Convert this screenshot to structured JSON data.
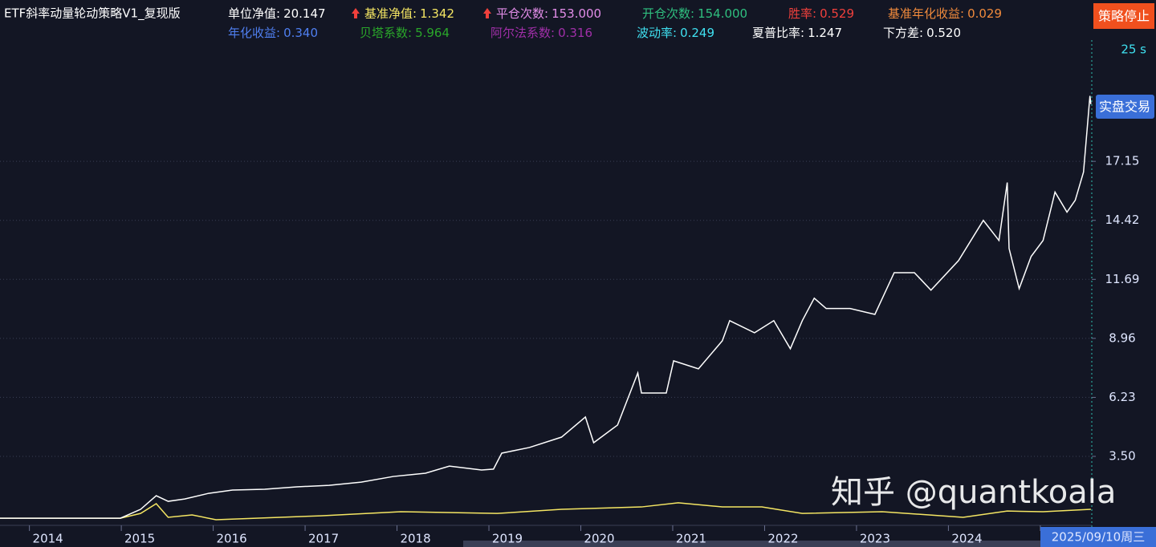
{
  "header": {
    "title": "ETF斜率动量轮动策略V1_复现版",
    "stats": [
      {
        "label": "单位净值:",
        "value": "20.147",
        "color": "#ffffff"
      },
      {
        "label": "基准净值:",
        "value": "1.342",
        "color": "#f5e663"
      },
      {
        "label": "平仓次数:",
        "value": "153.000",
        "color": "#e28de8"
      },
      {
        "label": "开仓次数:",
        "value": "154.000",
        "color": "#2fbf7f"
      },
      {
        "label": "胜率:",
        "value": "0.529",
        "color": "#f0403c"
      },
      {
        "label": "基准年化收益:",
        "value": "0.029",
        "color": "#f08a3c"
      },
      {
        "label": "年化收益:",
        "value": "0.340",
        "color": "#4f7ff0"
      },
      {
        "label": "贝塔系数:",
        "value": "5.964",
        "color": "#2aa62a"
      },
      {
        "label": "阿尔法系数:",
        "value": "0.316",
        "color": "#a02fa8"
      },
      {
        "label": "波动率:",
        "value": "0.249",
        "color": "#3fe0f0"
      },
      {
        "label": "夏普比率:",
        "value": "1.247",
        "color": "#ffffff"
      },
      {
        "label": "下方差:",
        "value": "0.520",
        "color": "#ffffff"
      }
    ]
  },
  "buttons": {
    "stop": "策略停止",
    "live": "实盘交易"
  },
  "timer": "25 s",
  "cursor_date": "2025/09/10周三",
  "watermark": "知乎 @quantkoala",
  "chart_data": {
    "type": "line",
    "xlim": [
      2013.68,
      2025.56
    ],
    "xticks": [
      2014,
      2015,
      2016,
      2017,
      2018,
      2019,
      2020,
      2021,
      2022,
      2023,
      2024,
      2025
    ],
    "ylim": [
      0.42,
      22.76
    ],
    "yticks": [
      {
        "value": 3.5,
        "label": "3.50"
      },
      6.23,
      8.96,
      11.69,
      14.42,
      17.15
    ],
    "grid": true,
    "series": [
      {
        "color": "#ffffff",
        "x": [
          2013.68,
          2014.99,
          2015.21,
          2015.38,
          2015.51,
          2015.69,
          2015.95,
          2016.21,
          2016.56,
          2016.91,
          2017.26,
          2017.61,
          2017.96,
          2018.31,
          2018.57,
          2018.92,
          2019.05,
          2019.14,
          2019.44,
          2019.79,
          2020.05,
          2020.14,
          2020.4,
          2020.62,
          2020.66,
          2020.93,
          2021.01,
          2021.28,
          2021.54,
          2021.62,
          2021.89,
          2022.1,
          2022.28,
          2022.41,
          2022.54,
          2022.67,
          2022.93,
          2023.2,
          2023.41,
          2023.63,
          2023.81,
          2024.11,
          2024.38,
          2024.55,
          2024.64,
          2024.66,
          2024.77,
          2024.9,
          2025.03,
          2025.16,
          2025.29,
          2025.38,
          2025.47,
          2025.54,
          2025.55
        ],
        "values": [
          0.64,
          0.64,
          1.05,
          1.68,
          1.42,
          1.53,
          1.79,
          1.94,
          1.98,
          2.09,
          2.16,
          2.31,
          2.57,
          2.72,
          3.05,
          2.87,
          2.91,
          3.65,
          3.91,
          4.39,
          5.32,
          4.13,
          4.95,
          7.36,
          6.43,
          6.43,
          7.92,
          7.55,
          8.85,
          9.78,
          9.22,
          9.78,
          8.48,
          9.78,
          10.82,
          10.34,
          10.34,
          10.07,
          12.0,
          12.0,
          11.19,
          12.56,
          14.42,
          13.49,
          16.17,
          13.12,
          11.26,
          12.75,
          13.49,
          15.73,
          14.8,
          15.35,
          16.65,
          20.18,
          19.8
        ]
      },
      {
        "color": "#f5e663",
        "x": [
          2013.68,
          2014.99,
          2015.21,
          2015.38,
          2015.51,
          2015.77,
          2016.03,
          2017.17,
          2018.04,
          2019.09,
          2019.79,
          2020.66,
          2021.06,
          2021.54,
          2021.97,
          2022.41,
          2023.28,
          2024.16,
          2024.64,
          2025.03,
          2025.55
        ],
        "values": [
          0.64,
          0.64,
          0.86,
          1.31,
          0.68,
          0.79,
          0.57,
          0.75,
          0.94,
          0.86,
          1.05,
          1.16,
          1.35,
          1.16,
          1.16,
          0.86,
          0.94,
          0.68,
          0.97,
          0.94,
          1.05
        ]
      }
    ]
  }
}
